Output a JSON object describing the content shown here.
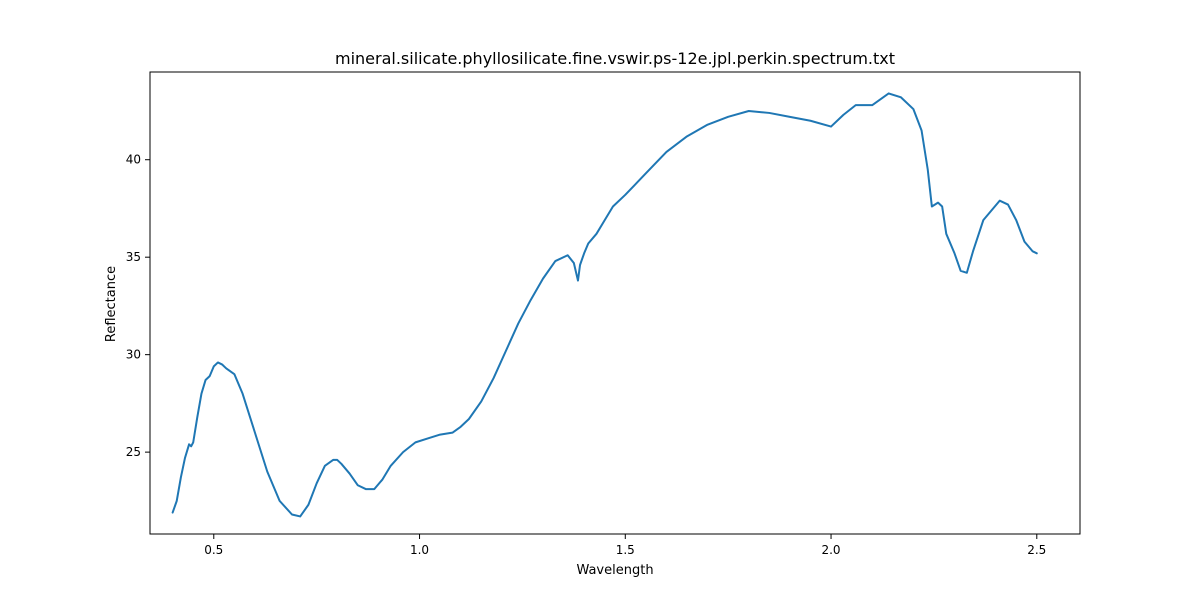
{
  "chart_data": {
    "type": "line",
    "title": "mineral.silicate.phyllosilicate.fine.vswir.ps-12e.jpl.perkin.spectrum.txt",
    "xlabel": "Wavelength",
    "ylabel": "Reflectance",
    "xlim": [
      0.345,
      2.605
    ],
    "ylim": [
      20.8,
      44.5
    ],
    "xticks": [
      0.5,
      1.0,
      1.5,
      2.0,
      2.5
    ],
    "xtick_labels": [
      "0.5",
      "1.0",
      "1.5",
      "2.0",
      "2.5"
    ],
    "yticks": [
      25,
      30,
      35,
      40
    ],
    "ytick_labels": [
      "25",
      "30",
      "35",
      "40"
    ],
    "grid": false,
    "legend": "none",
    "series": [
      {
        "color": "#1f77b4",
        "x": [
          0.4,
          0.41,
          0.42,
          0.43,
          0.44,
          0.445,
          0.45,
          0.46,
          0.47,
          0.48,
          0.49,
          0.5,
          0.51,
          0.52,
          0.53,
          0.55,
          0.57,
          0.6,
          0.63,
          0.66,
          0.69,
          0.71,
          0.73,
          0.75,
          0.77,
          0.79,
          0.8,
          0.81,
          0.83,
          0.85,
          0.87,
          0.89,
          0.91,
          0.93,
          0.96,
          0.99,
          1.02,
          1.05,
          1.08,
          1.1,
          1.12,
          1.15,
          1.18,
          1.21,
          1.24,
          1.27,
          1.3,
          1.33,
          1.36,
          1.375,
          1.385,
          1.39,
          1.395,
          1.4,
          1.41,
          1.43,
          1.45,
          1.47,
          1.5,
          1.55,
          1.6,
          1.65,
          1.7,
          1.75,
          1.8,
          1.85,
          1.9,
          1.95,
          2.0,
          2.03,
          2.06,
          2.1,
          2.14,
          2.17,
          2.2,
          2.22,
          2.235,
          2.245,
          2.26,
          2.27,
          2.28,
          2.3,
          2.315,
          2.33,
          2.345,
          2.37,
          2.39,
          2.41,
          2.43,
          2.45,
          2.47,
          2.49,
          2.5
        ],
        "y": [
          21.9,
          22.5,
          23.7,
          24.7,
          25.4,
          25.3,
          25.5,
          26.8,
          28.0,
          28.7,
          28.9,
          29.4,
          29.6,
          29.5,
          29.3,
          29.0,
          28.0,
          26.0,
          24.0,
          22.5,
          21.8,
          21.7,
          22.3,
          23.4,
          24.3,
          24.6,
          24.6,
          24.4,
          23.9,
          23.3,
          23.1,
          23.1,
          23.6,
          24.3,
          25.0,
          25.5,
          25.7,
          25.9,
          26.0,
          26.3,
          26.7,
          27.6,
          28.8,
          30.2,
          31.6,
          32.8,
          33.9,
          34.8,
          35.1,
          34.7,
          33.8,
          34.6,
          34.9,
          35.2,
          35.7,
          36.2,
          36.9,
          37.6,
          38.2,
          39.3,
          40.4,
          41.2,
          41.8,
          42.2,
          42.5,
          42.4,
          42.2,
          42.0,
          41.7,
          42.3,
          42.8,
          42.8,
          43.4,
          43.2,
          42.6,
          41.5,
          39.5,
          37.6,
          37.8,
          37.6,
          36.2,
          35.2,
          34.3,
          34.2,
          35.3,
          36.9,
          37.4,
          37.9,
          37.7,
          36.9,
          35.8,
          35.3,
          35.2
        ]
      }
    ]
  }
}
